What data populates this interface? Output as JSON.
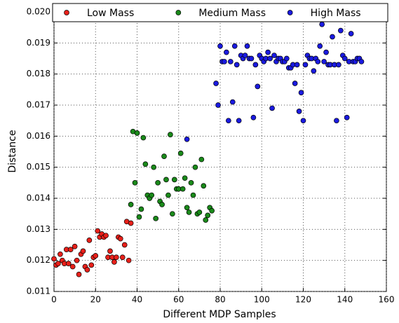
{
  "chart_data": {
    "type": "scatter",
    "xlabel": "Different MDP Samples",
    "ylabel": "Distance",
    "xlim": [
      0,
      160
    ],
    "xticks": [
      0,
      20,
      40,
      60,
      80,
      100,
      120,
      140,
      160
    ],
    "ylim": [
      0.011,
      0.02
    ],
    "yticks": [
      0.011,
      0.012,
      0.013,
      0.014,
      0.015,
      0.016,
      0.017,
      0.018,
      0.019,
      {
        "value": 0.02,
        "label": "0.020"
      }
    ],
    "grid": true,
    "legend": "top",
    "series": [
      {
        "name": "Low Mass",
        "color": "#e8201a",
        "x": [
          0,
          1,
          2,
          3,
          4,
          5,
          6,
          7,
          8,
          9,
          10,
          11,
          12,
          13,
          14,
          15,
          16,
          17,
          18,
          19,
          20,
          21,
          22,
          23,
          24,
          25,
          26,
          27,
          28,
          29,
          30,
          31,
          32,
          33,
          34,
          35,
          36,
          37
        ],
        "values": [
          0.01205,
          0.01185,
          0.0119,
          0.0122,
          0.012,
          0.0119,
          0.01235,
          0.0119,
          0.01235,
          0.0118,
          0.01245,
          0.012,
          0.01155,
          0.0122,
          0.0123,
          0.0118,
          0.0117,
          0.01265,
          0.01185,
          0.0121,
          0.01215,
          0.01295,
          0.01275,
          0.01285,
          0.01275,
          0.0128,
          0.0121,
          0.0123,
          0.0121,
          0.01195,
          0.0121,
          0.01275,
          0.0127,
          0.0121,
          0.0125,
          0.01325,
          0.012,
          0.0132
        ]
      },
      {
        "name": "Medium Mass",
        "color": "#1a8a1a",
        "x": [
          37,
          38,
          39,
          40,
          41,
          42,
          43,
          44,
          45,
          46,
          47,
          48,
          49,
          50,
          51,
          52,
          53,
          54,
          55,
          56,
          57,
          58,
          59,
          60,
          61,
          62,
          63,
          64,
          65,
          66,
          67,
          68,
          69,
          70,
          71,
          72,
          73,
          74,
          75,
          76
        ],
        "values": [
          0.0138,
          0.01615,
          0.0145,
          0.0161,
          0.0134,
          0.01365,
          0.01595,
          0.0151,
          0.0141,
          0.014,
          0.0141,
          0.015,
          0.01335,
          0.0145,
          0.0139,
          0.0138,
          0.01535,
          0.0146,
          0.0141,
          0.01605,
          0.0135,
          0.0146,
          0.0143,
          0.0143,
          0.01545,
          0.0143,
          0.01465,
          0.0137,
          0.01355,
          0.0145,
          0.0141,
          0.015,
          0.0135,
          0.01355,
          0.01525,
          0.0144,
          0.0133,
          0.01345,
          0.0137,
          0.0136
        ]
      },
      {
        "name": "High Mass",
        "color": "#1a1ae0",
        "x": [
          64,
          78,
          79,
          80,
          81,
          82,
          83,
          84,
          85,
          86,
          87,
          88,
          89,
          90,
          91,
          92,
          93,
          94,
          95,
          96,
          97,
          98,
          99,
          100,
          101,
          102,
          103,
          104,
          105,
          106,
          107,
          108,
          109,
          110,
          111,
          112,
          113,
          114,
          115,
          116,
          117,
          118,
          119,
          120,
          121,
          122,
          123,
          124,
          125,
          126,
          127,
          128,
          129,
          130,
          131,
          132,
          133,
          134,
          135,
          136,
          137,
          138,
          139,
          140,
          141,
          142,
          143,
          144,
          145,
          146,
          147,
          148
        ],
        "values": [
          0.0159,
          0.0177,
          0.017,
          0.0189,
          0.0184,
          0.0184,
          0.0187,
          0.0165,
          0.0184,
          0.0171,
          0.0189,
          0.0183,
          0.0165,
          0.0186,
          0.0185,
          0.0186,
          0.0189,
          0.0185,
          0.0185,
          0.0166,
          0.0183,
          0.0176,
          0.0186,
          0.0185,
          0.0184,
          0.0185,
          0.0187,
          0.0185,
          0.0169,
          0.0186,
          0.0184,
          0.0185,
          0.0185,
          0.0184,
          0.0184,
          0.0185,
          0.0182,
          0.0182,
          0.0183,
          0.0177,
          0.0183,
          0.0168,
          0.0174,
          0.0165,
          0.0183,
          0.0186,
          0.0185,
          0.0185,
          0.0181,
          0.0185,
          0.0184,
          0.0189,
          0.0196,
          0.0184,
          0.0187,
          0.0183,
          0.0183,
          0.0192,
          0.0183,
          0.0165,
          0.0183,
          0.0194,
          0.0186,
          0.0185,
          0.0166,
          0.0184,
          0.0193,
          0.0184,
          0.0184,
          0.0185,
          0.0185,
          0.0184
        ]
      }
    ]
  }
}
